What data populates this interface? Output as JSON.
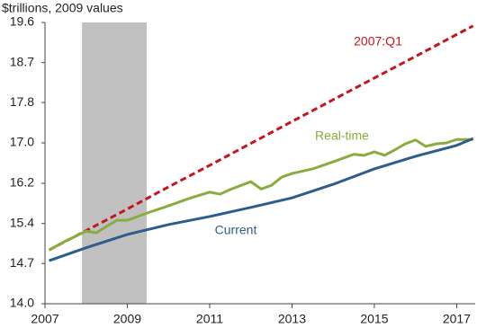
{
  "chart_data": {
    "type": "line",
    "y_axis_label": "$trillions, 2009 values",
    "log_scale": true,
    "xlim": [
      2007,
      2017.45
    ],
    "ylim": [
      14.0,
      19.6
    ],
    "xticks": [
      2007,
      2009,
      2011,
      2013,
      2015,
      2017
    ],
    "yticks": [
      {
        "value": 14.0,
        "label": "14.0"
      },
      {
        "value": 14.69,
        "label": "14.7"
      },
      {
        "value": 15.41,
        "label": "15.4"
      },
      {
        "value": 16.17,
        "label": "16.2"
      },
      {
        "value": 16.97,
        "label": "17.0"
      },
      {
        "value": 17.81,
        "label": "17.8"
      },
      {
        "value": 18.68,
        "label": "18.7"
      },
      19.6
    ],
    "shade": {
      "x": [
        2007.9,
        2009.47
      ],
      "color": "#c0c0c0"
    },
    "series": [
      {
        "name": "2007:Q1",
        "color": "#c4161c",
        "dashed": true,
        "x": [
          2007.1,
          2008,
          2009,
          2010,
          2011,
          2012,
          2013,
          2014,
          2015,
          2016,
          2017,
          2017.4
        ],
        "values": [
          14.93,
          15.28,
          15.68,
          16.1,
          16.52,
          16.96,
          17.41,
          17.87,
          18.34,
          18.82,
          19.32,
          19.52
        ]
      },
      {
        "name": "Real-time",
        "color": "#8aac3f",
        "x": [
          2007.1,
          2007.5,
          2008,
          2008.25,
          2008.5,
          2008.75,
          2009,
          2009.5,
          2010,
          2010.5,
          2011,
          2011.25,
          2011.5,
          2012,
          2012.25,
          2012.5,
          2012.75,
          2013,
          2013.5,
          2014,
          2014.5,
          2014.75,
          2015,
          2015.25,
          2015.5,
          2015.75,
          2016,
          2016.25,
          2016.5,
          2016.75,
          2017,
          2017.4
        ],
        "values": [
          14.93,
          15.09,
          15.27,
          15.24,
          15.36,
          15.47,
          15.47,
          15.61,
          15.74,
          15.88,
          16.0,
          15.96,
          16.05,
          16.2,
          16.06,
          16.13,
          16.29,
          16.36,
          16.45,
          16.59,
          16.74,
          16.72,
          16.79,
          16.72,
          16.83,
          16.95,
          17.03,
          16.9,
          16.95,
          16.97,
          17.04,
          17.04
        ]
      },
      {
        "name": "Current",
        "color": "#2d5d8a",
        "x": [
          2007.1,
          2008,
          2009,
          2010,
          2011,
          2012,
          2013,
          2014,
          2015,
          2016,
          2017,
          2017.4
        ],
        "values": [
          14.74,
          14.97,
          15.21,
          15.39,
          15.54,
          15.71,
          15.89,
          16.15,
          16.45,
          16.7,
          16.92,
          17.06
        ]
      }
    ]
  }
}
